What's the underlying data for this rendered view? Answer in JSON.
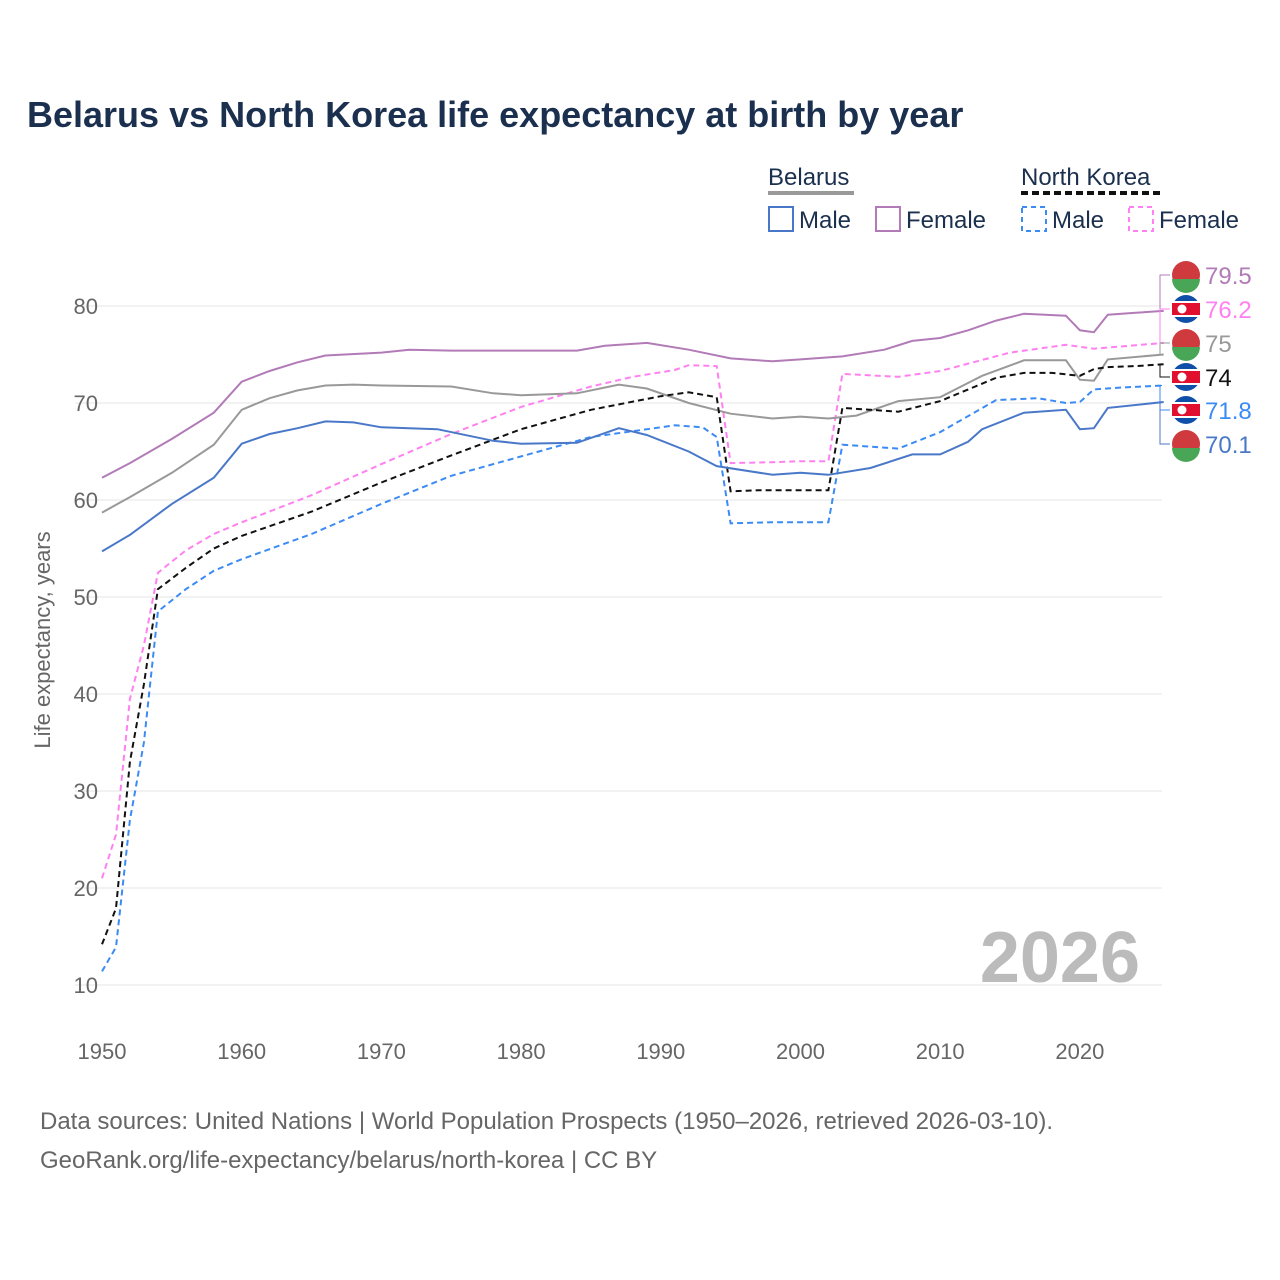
{
  "chart_data": {
    "type": "line",
    "title": "Belarus vs North Korea life expectancy at birth by year",
    "ylabel": "Life expectancy, years",
    "xlabel": "",
    "xlim": [
      1950,
      2026
    ],
    "ylim": [
      10,
      80
    ],
    "x_ticks": [
      "1950",
      "1960",
      "1970",
      "1980",
      "1990",
      "2000",
      "2010",
      "2020"
    ],
    "y_ticks": [
      "10",
      "20",
      "30",
      "40",
      "50",
      "60",
      "70",
      "80"
    ],
    "grid": true,
    "watermark_year": "2026",
    "legend": {
      "groups": [
        {
          "name": "Belarus",
          "items": [
            "Male",
            "Female"
          ]
        },
        {
          "name": "North Korea",
          "items": [
            "Male",
            "Female"
          ]
        }
      ],
      "placement": "top-right"
    },
    "series": [
      {
        "name": "Belarus Female",
        "color": "#b27bb8",
        "dash": false,
        "flag": "belarus",
        "end_label": "79.5",
        "points": [
          [
            1950,
            62.3
          ],
          [
            1952,
            63.8
          ],
          [
            1955,
            66.3
          ],
          [
            1958,
            69
          ],
          [
            1960,
            72.2
          ],
          [
            1962,
            73.3
          ],
          [
            1964,
            74.2
          ],
          [
            1966,
            74.9
          ],
          [
            1970,
            75.2
          ],
          [
            1972,
            75.5
          ],
          [
            1975,
            75.4
          ],
          [
            1980,
            75.4
          ],
          [
            1984,
            75.4
          ],
          [
            1986,
            75.9
          ],
          [
            1989,
            76.2
          ],
          [
            1992,
            75.5
          ],
          [
            1995,
            74.6
          ],
          [
            1998,
            74.3
          ],
          [
            2000,
            74.5
          ],
          [
            2003,
            74.8
          ],
          [
            2006,
            75.5
          ],
          [
            2008,
            76.4
          ],
          [
            2010,
            76.7
          ],
          [
            2012,
            77.5
          ],
          [
            2014,
            78.5
          ],
          [
            2016,
            79.2
          ],
          [
            2019,
            79.0
          ],
          [
            2020,
            77.5
          ],
          [
            2021,
            77.3
          ],
          [
            2022,
            79.1
          ],
          [
            2024,
            79.3
          ],
          [
            2026,
            79.5
          ]
        ]
      },
      {
        "name": "North Korea Female",
        "color": "#ff80f0",
        "dash": true,
        "flag": "north-korea",
        "end_label": "76.2",
        "points": [
          [
            1950,
            21
          ],
          [
            1951,
            25.5
          ],
          [
            1952,
            39.5
          ],
          [
            1953,
            45
          ],
          [
            1954,
            52.5
          ],
          [
            1956,
            54.8
          ],
          [
            1958,
            56.5
          ],
          [
            1960,
            57.7
          ],
          [
            1965,
            60.5
          ],
          [
            1970,
            63.7
          ],
          [
            1975,
            66.8
          ],
          [
            1980,
            69.6
          ],
          [
            1985,
            71.7
          ],
          [
            1988,
            72.7
          ],
          [
            1991,
            73.4
          ],
          [
            1992,
            73.9
          ],
          [
            1994,
            73.8
          ],
          [
            1995,
            63.8
          ],
          [
            1998,
            63.9
          ],
          [
            2000,
            64
          ],
          [
            2002,
            64
          ],
          [
            2003,
            73
          ],
          [
            2007,
            72.7
          ],
          [
            2010,
            73.3
          ],
          [
            2015,
            75.2
          ],
          [
            2019,
            76
          ],
          [
            2021,
            75.6
          ],
          [
            2026,
            76.2
          ]
        ]
      },
      {
        "name": "Belarus Both",
        "color": "#999999",
        "dash": false,
        "flag": "belarus",
        "end_label": "75",
        "points": [
          [
            1950,
            58.7
          ],
          [
            1952,
            60.3
          ],
          [
            1955,
            62.8
          ],
          [
            1958,
            65.7
          ],
          [
            1960,
            69.3
          ],
          [
            1962,
            70.5
          ],
          [
            1964,
            71.3
          ],
          [
            1966,
            71.8
          ],
          [
            1968,
            71.9
          ],
          [
            1970,
            71.8
          ],
          [
            1975,
            71.7
          ],
          [
            1978,
            71.0
          ],
          [
            1980,
            70.8
          ],
          [
            1984,
            71.0
          ],
          [
            1987,
            71.9
          ],
          [
            1989,
            71.5
          ],
          [
            1992,
            70
          ],
          [
            1995,
            68.9
          ],
          [
            1998,
            68.4
          ],
          [
            2000,
            68.6
          ],
          [
            2002,
            68.4
          ],
          [
            2004,
            68.7
          ],
          [
            2007,
            70.2
          ],
          [
            2010,
            70.6
          ],
          [
            2013,
            72.8
          ],
          [
            2016,
            74.4
          ],
          [
            2019,
            74.4
          ],
          [
            2020,
            72.4
          ],
          [
            2021,
            72.3
          ],
          [
            2022,
            74.5
          ],
          [
            2026,
            75
          ]
        ]
      },
      {
        "name": "North Korea Both",
        "color": "#111111",
        "dash": true,
        "flag": "north-korea",
        "end_label": "74",
        "points": [
          [
            1950,
            14.2
          ],
          [
            1951,
            17.9
          ],
          [
            1952,
            33
          ],
          [
            1953,
            41
          ],
          [
            1954,
            50.8
          ],
          [
            1956,
            53
          ],
          [
            1958,
            55
          ],
          [
            1960,
            56.3
          ],
          [
            1965,
            58.8
          ],
          [
            1970,
            61.8
          ],
          [
            1975,
            64.6
          ],
          [
            1980,
            67.3
          ],
          [
            1985,
            69.3
          ],
          [
            1990,
            70.7
          ],
          [
            1992,
            71.1
          ],
          [
            1994,
            70.6
          ],
          [
            1995,
            60.9
          ],
          [
            1997,
            61
          ],
          [
            2002,
            61
          ],
          [
            2003,
            69.5
          ],
          [
            2007,
            69.1
          ],
          [
            2010,
            70.2
          ],
          [
            2014,
            72.6
          ],
          [
            2016,
            73.1
          ],
          [
            2018,
            73.1
          ],
          [
            2020,
            72.8
          ],
          [
            2021,
            73.5
          ],
          [
            2022,
            73.7
          ],
          [
            2024,
            73.8
          ],
          [
            2026,
            74
          ]
        ]
      },
      {
        "name": "North Korea Male",
        "color": "#3b8bf5",
        "dash": true,
        "flag": "north-korea",
        "end_label": "71.8",
        "points": [
          [
            1950,
            11.4
          ],
          [
            1951,
            13.9
          ],
          [
            1952,
            27
          ],
          [
            1953,
            35
          ],
          [
            1954,
            48.5
          ],
          [
            1956,
            50.8
          ],
          [
            1958,
            52.7
          ],
          [
            1960,
            53.9
          ],
          [
            1965,
            56.5
          ],
          [
            1970,
            59.6
          ],
          [
            1975,
            62.5
          ],
          [
            1980,
            64.5
          ],
          [
            1985,
            66.5
          ],
          [
            1990,
            67.5
          ],
          [
            1991,
            67.7
          ],
          [
            1993,
            67.5
          ],
          [
            1994,
            66.5
          ],
          [
            1995,
            57.6
          ],
          [
            1998,
            57.7
          ],
          [
            2002,
            57.7
          ],
          [
            2003,
            65.7
          ],
          [
            2007,
            65.3
          ],
          [
            2010,
            67
          ],
          [
            2014,
            70.3
          ],
          [
            2017,
            70.5
          ],
          [
            2019,
            70
          ],
          [
            2020,
            70.1
          ],
          [
            2021,
            71.4
          ],
          [
            2023,
            71.6
          ],
          [
            2026,
            71.8
          ]
        ]
      },
      {
        "name": "Belarus Male",
        "color": "#4a78c8",
        "dash": false,
        "flag": "belarus",
        "end_label": "70.1",
        "points": [
          [
            1950,
            54.7
          ],
          [
            1952,
            56.4
          ],
          [
            1955,
            59.6
          ],
          [
            1958,
            62.3
          ],
          [
            1960,
            65.8
          ],
          [
            1962,
            66.8
          ],
          [
            1964,
            67.4
          ],
          [
            1966,
            68.1
          ],
          [
            1968,
            68
          ],
          [
            1970,
            67.5
          ],
          [
            1972,
            67.4
          ],
          [
            1974,
            67.3
          ],
          [
            1978,
            66.1
          ],
          [
            1980,
            65.8
          ],
          [
            1984,
            65.9
          ],
          [
            1987,
            67.4
          ],
          [
            1989,
            66.7
          ],
          [
            1992,
            65
          ],
          [
            1994,
            63.5
          ],
          [
            1998,
            62.6
          ],
          [
            2000,
            62.8
          ],
          [
            2002,
            62.6
          ],
          [
            2005,
            63.3
          ],
          [
            2008,
            64.7
          ],
          [
            2010,
            64.7
          ],
          [
            2012,
            66
          ],
          [
            2013,
            67.3
          ],
          [
            2016,
            69
          ],
          [
            2019,
            69.3
          ],
          [
            2020,
            67.3
          ],
          [
            2021,
            67.4
          ],
          [
            2022,
            69.5
          ],
          [
            2026,
            70.1
          ]
        ]
      }
    ]
  },
  "footer": {
    "line1": "Data sources: United Nations | World Population Prospects (1950–2026, retrieved 2026-03-10).",
    "line2": "GeoRank.org/life-expectancy/belarus/north-korea | CC BY"
  }
}
